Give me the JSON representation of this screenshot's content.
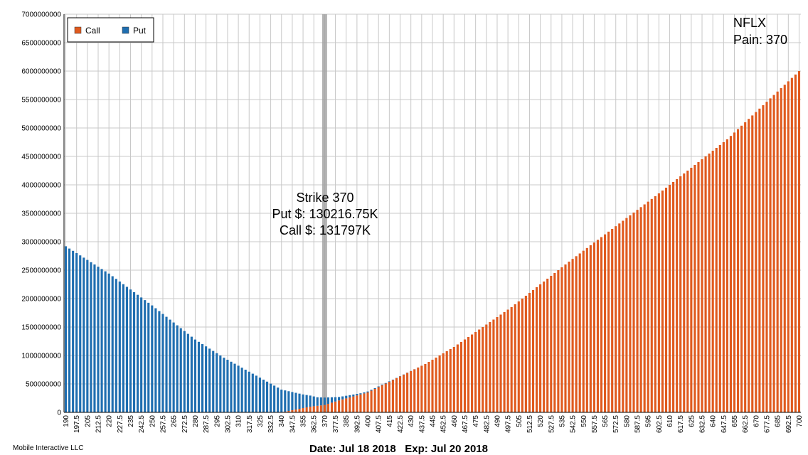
{
  "chart_data": {
    "type": "bar",
    "stacked": true,
    "ticker": "NFLX",
    "pain_label": "Pain: 370",
    "legend": [
      "Call",
      "Put"
    ],
    "legend_placement": "top-left",
    "grid": true,
    "ylim": [
      0,
      7000000000
    ],
    "yticks": [
      0,
      500000000,
      1000000000,
      1500000000,
      2000000000,
      2500000000,
      3000000000,
      3500000000,
      4000000000,
      4500000000,
      5000000000,
      5500000000,
      6000000000,
      6500000000,
      7000000000
    ],
    "strikes": {
      "start": 190,
      "end": 700,
      "step": 2.5
    },
    "pain_strike": 370,
    "annotation": [
      "Strike 370",
      "Put $: 130216.75K",
      "Call $: 131797K"
    ],
    "series": [
      {
        "name": "Call",
        "color": "#e05a1e",
        "anchors": [
          [
            190,
            0
          ],
          [
            340,
            0
          ],
          [
            360,
            100000000
          ],
          [
            370,
            130000000
          ],
          [
            380,
            210000000
          ],
          [
            400,
            350000000
          ],
          [
            420,
            600000000
          ],
          [
            440,
            850000000
          ],
          [
            460,
            1150000000
          ],
          [
            480,
            1500000000
          ],
          [
            500,
            1850000000
          ],
          [
            540,
            2650000000
          ],
          [
            600,
            3800000000
          ],
          [
            650,
            4800000000
          ],
          [
            700,
            6000000000
          ]
        ]
      },
      {
        "name": "Put",
        "color": "#1f6eb0",
        "anchors": [
          [
            190,
            2920000000
          ],
          [
            220,
            2440000000
          ],
          [
            250,
            1880000000
          ],
          [
            280,
            1280000000
          ],
          [
            300,
            960000000
          ],
          [
            320,
            680000000
          ],
          [
            340,
            400000000
          ],
          [
            355,
            240000000
          ],
          [
            365,
            150000000
          ],
          [
            370,
            130000000
          ],
          [
            380,
            60000000
          ],
          [
            395,
            20000000
          ],
          [
            420,
            5000000
          ],
          [
            440,
            0
          ],
          [
            700,
            0
          ]
        ]
      }
    ]
  },
  "footer": {
    "company": "Mobile Interactive LLC",
    "date_text": "Date: Jul 18 2018   Exp: Jul 20 2018"
  },
  "colors": {
    "call": "#e05a1e",
    "put": "#1f6eb0",
    "grid": "#c8c8c8",
    "highlight": "#a0a0a0"
  }
}
